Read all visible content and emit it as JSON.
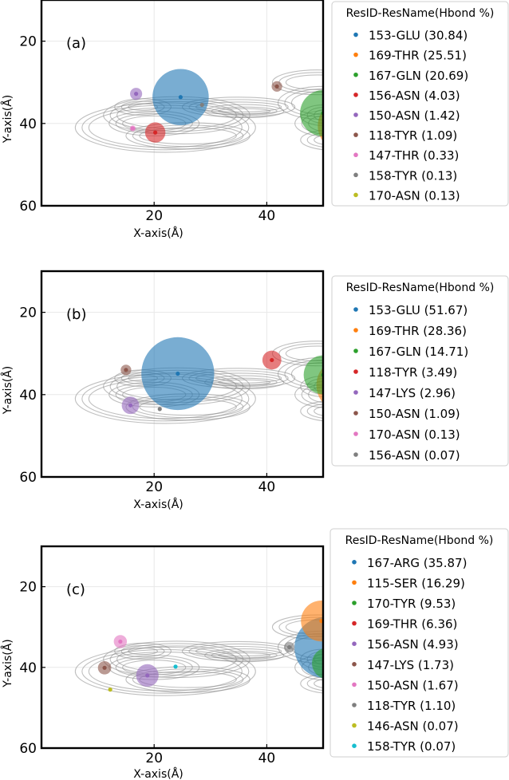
{
  "chart_data": [
    {
      "type": "scatter",
      "panel_label": "(a)",
      "xlabel": "X-axis(Å)",
      "ylabel": "Y-axis(Å)",
      "xlim": [
        0,
        50
      ],
      "ylim": [
        60,
        10
      ],
      "xticks": [
        20,
        40
      ],
      "yticks": [
        20,
        40,
        60
      ],
      "grid": true,
      "legend_title": "ResID-ResName(Hbond %)",
      "legend_position": "outside-right",
      "series": [
        {
          "name": "153-GLU (30.84)",
          "color": "#1f77b4",
          "x": 24.7,
          "y": 33.6,
          "hbond": 30.84
        },
        {
          "name": "169-THR (25.51)",
          "color": "#ff7f0e",
          "x": 53.6,
          "y": 40.6,
          "hbond": 25.51
        },
        {
          "name": "167-GLN (20.69)",
          "color": "#2ca02c",
          "x": 50.0,
          "y": 37.5,
          "hbond": 20.69
        },
        {
          "name": "156-ASN (4.03)",
          "color": "#d62728",
          "x": 20.2,
          "y": 42.2,
          "hbond": 4.03
        },
        {
          "name": "150-ASN (1.42)",
          "color": "#9467bd",
          "x": 16.8,
          "y": 32.8,
          "hbond": 1.42
        },
        {
          "name": "118-TYR (1.09)",
          "color": "#8c564b",
          "x": 41.8,
          "y": 31.0,
          "hbond": 1.09
        },
        {
          "name": "147-THR (0.33)",
          "color": "#e377c2",
          "x": 16.2,
          "y": 41.2,
          "hbond": 0.33
        },
        {
          "name": "158-TYR (0.13)",
          "color": "#7f7f7f",
          "x": 28.5,
          "y": 35.5,
          "hbond": 0.13
        },
        {
          "name": "170-ASN (0.13)",
          "color": "#bcbd22",
          "x": 52.0,
          "y": 41.0,
          "hbond": 0.13
        }
      ]
    },
    {
      "type": "scatter",
      "panel_label": "(b)",
      "xlabel": "X-axis(Å)",
      "ylabel": "Y-axis(Å)",
      "xlim": [
        0,
        50
      ],
      "ylim": [
        60,
        10
      ],
      "xticks": [
        20,
        40
      ],
      "yticks": [
        20,
        40,
        60
      ],
      "grid": true,
      "legend_title": "ResID-ResName(Hbond %)",
      "legend_position": "outside-right",
      "series": [
        {
          "name": "153-GLU (51.67)",
          "color": "#1f77b4",
          "x": 24.2,
          "y": 34.9,
          "hbond": 51.67
        },
        {
          "name": "169-THR (28.36)",
          "color": "#ff7f0e",
          "x": 53.6,
          "y": 37.7,
          "hbond": 28.36
        },
        {
          "name": "167-GLN (14.71)",
          "color": "#2ca02c",
          "x": 50.0,
          "y": 35.2,
          "hbond": 14.71
        },
        {
          "name": "118-TYR (3.49)",
          "color": "#d62728",
          "x": 40.9,
          "y": 31.6,
          "hbond": 3.49
        },
        {
          "name": "147-LYS (2.96)",
          "color": "#9467bd",
          "x": 15.8,
          "y": 42.6,
          "hbond": 2.96
        },
        {
          "name": "150-ASN (1.09)",
          "color": "#8c564b",
          "x": 15.0,
          "y": 34.0,
          "hbond": 1.09
        },
        {
          "name": "170-ASN (0.13)",
          "color": "#e377c2",
          "x": 52.0,
          "y": 39.5,
          "hbond": 0.13
        },
        {
          "name": "156-ASN (0.07)",
          "color": "#7f7f7f",
          "x": 21.0,
          "y": 43.5,
          "hbond": 0.07
        }
      ]
    },
    {
      "type": "scatter",
      "panel_label": "(c)",
      "xlabel": "X-axis(Å)",
      "ylabel": "Y-axis(Å)",
      "xlim": [
        0,
        50
      ],
      "ylim": [
        60,
        10
      ],
      "xticks": [
        20,
        40
      ],
      "yticks": [
        20,
        40,
        60
      ],
      "grid": true,
      "legend_title": "ResID-ResName(Hbond %)",
      "legend_position": "outside-right",
      "series": [
        {
          "name": "167-ARG (35.87)",
          "color": "#1f77b4",
          "x": 50.3,
          "y": 35.1,
          "hbond": 35.87
        },
        {
          "name": "115-SER (16.29)",
          "color": "#ff7f0e",
          "x": 49.7,
          "y": 28.5,
          "hbond": 16.29
        },
        {
          "name": "170-TYR (9.53)",
          "color": "#2ca02c",
          "x": 50.8,
          "y": 39.0,
          "hbond": 9.53
        },
        {
          "name": "169-THR (6.36)",
          "color": "#d62728",
          "x": 54.0,
          "y": 37.5,
          "hbond": 6.36
        },
        {
          "name": "156-ASN (4.93)",
          "color": "#9467bd",
          "x": 18.8,
          "y": 42.0,
          "hbond": 4.93
        },
        {
          "name": "147-LYS (1.73)",
          "color": "#8c564b",
          "x": 11.2,
          "y": 40.1,
          "hbond": 1.73
        },
        {
          "name": "150-ASN (1.67)",
          "color": "#e377c2",
          "x": 14.0,
          "y": 33.6,
          "hbond": 1.67
        },
        {
          "name": "118-TYR (1.10)",
          "color": "#7f7f7f",
          "x": 44.0,
          "y": 35.0,
          "hbond": 1.1
        },
        {
          "name": "146-ASN (0.07)",
          "color": "#bcbd22",
          "x": 12.2,
          "y": 45.5,
          "hbond": 0.07
        },
        {
          "name": "158-TYR (0.07)",
          "color": "#17becf",
          "x": 23.8,
          "y": 39.8,
          "hbond": 0.07
        }
      ]
    }
  ]
}
